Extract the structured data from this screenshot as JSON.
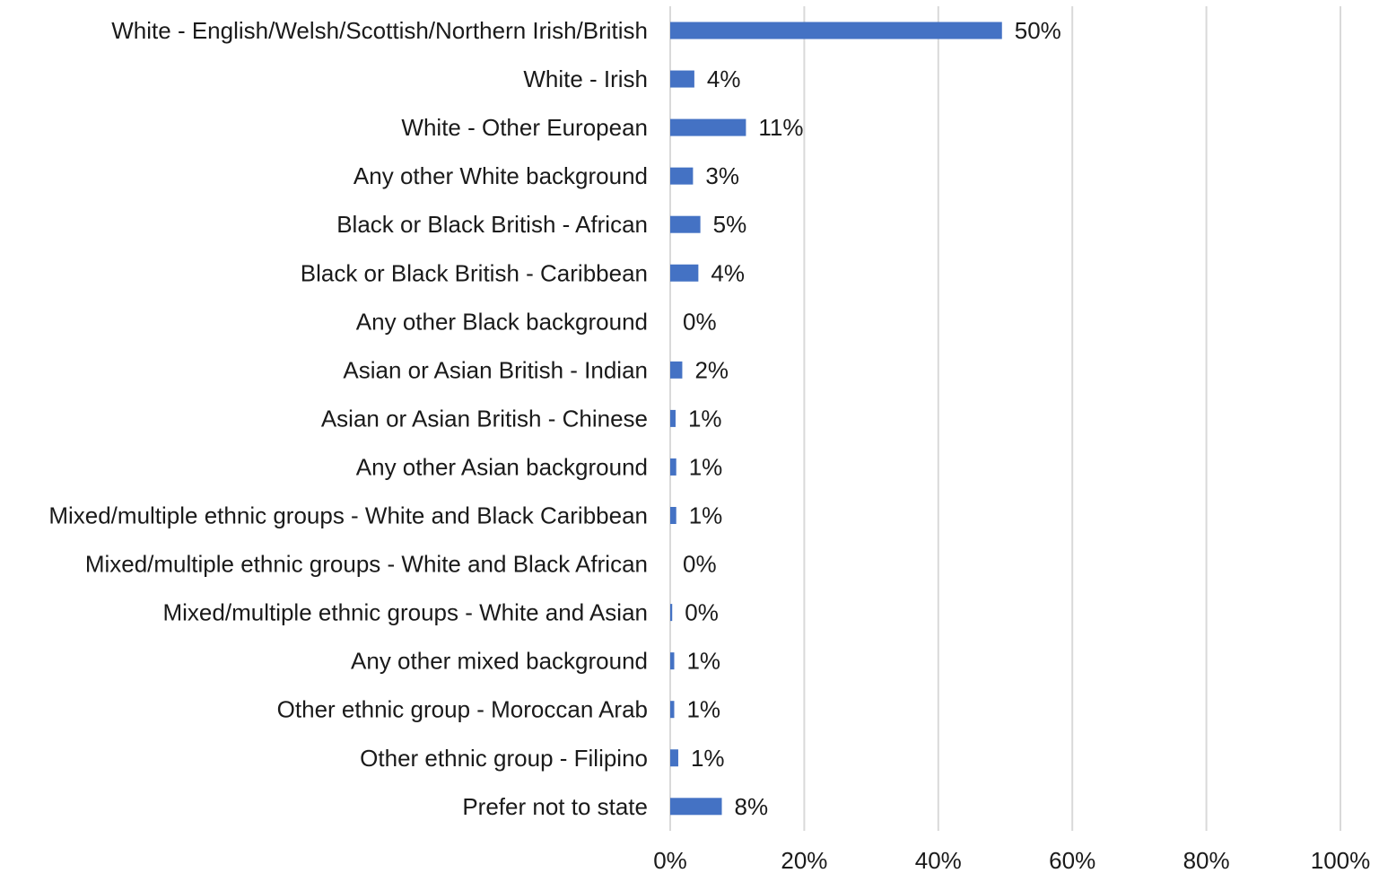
{
  "chart_data": {
    "type": "bar",
    "orientation": "horizontal",
    "title": "",
    "xlabel": "",
    "ylabel": "",
    "xlim": [
      0,
      100
    ],
    "x_ticks": [
      "0%",
      "20%",
      "40%",
      "60%",
      "80%",
      "100%"
    ],
    "x_tick_values": [
      0,
      20,
      40,
      60,
      80,
      100
    ],
    "grid": true,
    "legend": "none",
    "bar_color": "#4472C4",
    "categories": [
      "White - English/Welsh/Scottish/Northern Irish/British",
      "White - Irish",
      "White - Other European",
      "Any other White background",
      "Black or Black British - African",
      "Black or Black British - Caribbean",
      "Any other Black background",
      "Asian or Asian British - Indian",
      "Asian or Asian British - Chinese",
      "Any other Asian background",
      "Mixed/multiple ethnic groups - White and Black Caribbean",
      "Mixed/multiple ethnic groups - White and Black African",
      "Mixed/multiple ethnic groups - White and Asian",
      "Any other mixed background",
      "Other ethnic group - Moroccan Arab",
      "Other ethnic group - Filipino",
      "Prefer not to state"
    ],
    "values": [
      49.5,
      3.6,
      11.3,
      3.4,
      4.5,
      4.2,
      0.0,
      1.8,
      0.8,
      0.9,
      0.9,
      0.0,
      0.3,
      0.6,
      0.6,
      1.2,
      7.7
    ],
    "value_labels": [
      "50%",
      "4%",
      "11%",
      "3%",
      "5%",
      "4%",
      "0%",
      "2%",
      "1%",
      "1%",
      "1%",
      "0%",
      "0%",
      "1%",
      "1%",
      "1%",
      "8%"
    ]
  }
}
